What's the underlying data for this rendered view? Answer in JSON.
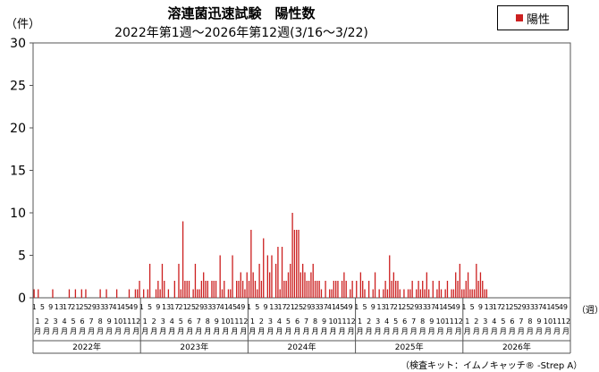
{
  "chart_data": {
    "type": "bar",
    "title": "溶連菌迅速試験　陽性数",
    "subtitle": "2022年第1週〜2026年第12週(3/16〜3/22)",
    "ylabel": "（件）",
    "xunit": "（週）",
    "ylim": [
      0,
      30
    ],
    "yticks": [
      0,
      5,
      10,
      15,
      20,
      25,
      30
    ],
    "legend": {
      "label": "陽性",
      "position": "top-right"
    },
    "bar_color": "#cc2020",
    "grid": false,
    "week_tick_labels": [
      "1",
      "5",
      "9",
      "13",
      "17",
      "21",
      "25",
      "29",
      "33",
      "37",
      "41",
      "45",
      "49"
    ],
    "month_labels": [
      "1月",
      "2月",
      "3月",
      "4月",
      "5月",
      "6月",
      "7月",
      "8月",
      "9月",
      "10月",
      "11月",
      "12月"
    ],
    "year_labels": [
      "2022年",
      "2023年",
      "2024年",
      "2025年",
      "2026年"
    ],
    "series": [
      {
        "year": "2022年",
        "values": [
          1,
          0,
          1,
          0,
          0,
          0,
          0,
          0,
          0,
          1,
          0,
          0,
          0,
          0,
          0,
          0,
          0,
          1,
          0,
          0,
          1,
          0,
          0,
          1,
          0,
          1,
          0,
          0,
          0,
          0,
          0,
          0,
          1,
          0,
          0,
          1,
          0,
          0,
          0,
          0,
          1,
          0,
          0,
          0,
          0,
          0,
          1,
          0,
          0,
          1,
          1,
          2
        ]
      },
      {
        "year": "2023年",
        "values": [
          0,
          1,
          0,
          1,
          4,
          0,
          0,
          1,
          2,
          1,
          4,
          2,
          0,
          1,
          0,
          0,
          2,
          0,
          4,
          1,
          9,
          2,
          2,
          2,
          0,
          1,
          4,
          1,
          1,
          2,
          3,
          2,
          2,
          0,
          2,
          2,
          2,
          0,
          5,
          1,
          2,
          0,
          1,
          1,
          5,
          0,
          2,
          2,
          3,
          2,
          1,
          3
        ]
      },
      {
        "year": "2024年",
        "values": [
          2,
          8,
          3,
          2,
          1,
          4,
          2,
          7,
          0,
          5,
          3,
          5,
          0,
          4,
          6,
          1,
          6,
          2,
          2,
          3,
          4,
          10,
          8,
          8,
          8,
          3,
          4,
          3,
          2,
          2,
          3,
          4,
          2,
          2,
          2,
          1,
          0,
          2,
          0,
          1,
          1,
          2,
          2,
          2,
          0,
          2,
          3,
          2,
          0,
          1,
          2,
          0
        ]
      },
      {
        "year": "2025年",
        "values": [
          2,
          0,
          3,
          2,
          1,
          0,
          2,
          0,
          1,
          3,
          0,
          1,
          0,
          1,
          2,
          1,
          5,
          2,
          3,
          2,
          2,
          1,
          0,
          1,
          0,
          1,
          1,
          2,
          0,
          1,
          2,
          1,
          2,
          1,
          3,
          1,
          0,
          2,
          0,
          1,
          2,
          1,
          0,
          1,
          2,
          0,
          1,
          1,
          3,
          2,
          4,
          1
        ]
      },
      {
        "year": "2026年",
        "values": [
          1,
          2,
          3,
          1,
          1,
          1,
          4,
          2,
          3,
          2,
          1,
          1,
          null,
          null,
          null,
          null,
          null,
          null,
          null,
          null,
          null,
          null,
          null,
          null,
          null,
          null,
          null,
          null,
          null,
          null,
          null,
          null,
          null,
          null,
          null,
          null,
          null,
          null,
          null,
          null,
          null,
          null,
          null,
          null,
          null,
          null,
          null,
          null,
          null,
          null,
          null,
          null
        ]
      }
    ],
    "footnote": "（検査キット：イムノキャッチ® -Strep A）"
  }
}
